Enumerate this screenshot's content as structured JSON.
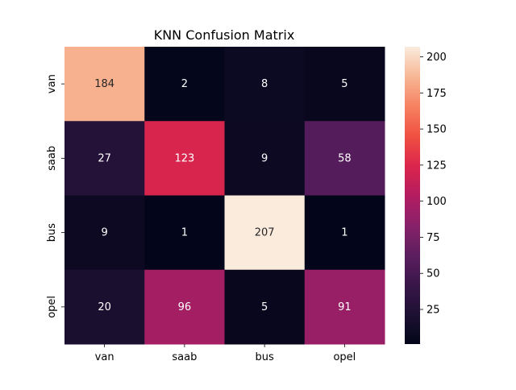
{
  "chart_data": {
    "type": "heatmap",
    "title": "KNN Confusion Matrix",
    "xlabel": "",
    "ylabel": "",
    "x_categories": [
      "van",
      "saab",
      "bus",
      "opel"
    ],
    "y_categories": [
      "van",
      "saab",
      "bus",
      "opel"
    ],
    "values": [
      [
        184,
        2,
        8,
        5
      ],
      [
        27,
        123,
        9,
        58
      ],
      [
        9,
        1,
        207,
        1
      ],
      [
        20,
        96,
        5,
        91
      ]
    ],
    "colorbar": {
      "min": 1,
      "max": 207,
      "ticks": [
        25,
        50,
        75,
        100,
        125,
        150,
        175,
        200
      ]
    },
    "colormap": "rocket",
    "grid": false
  }
}
